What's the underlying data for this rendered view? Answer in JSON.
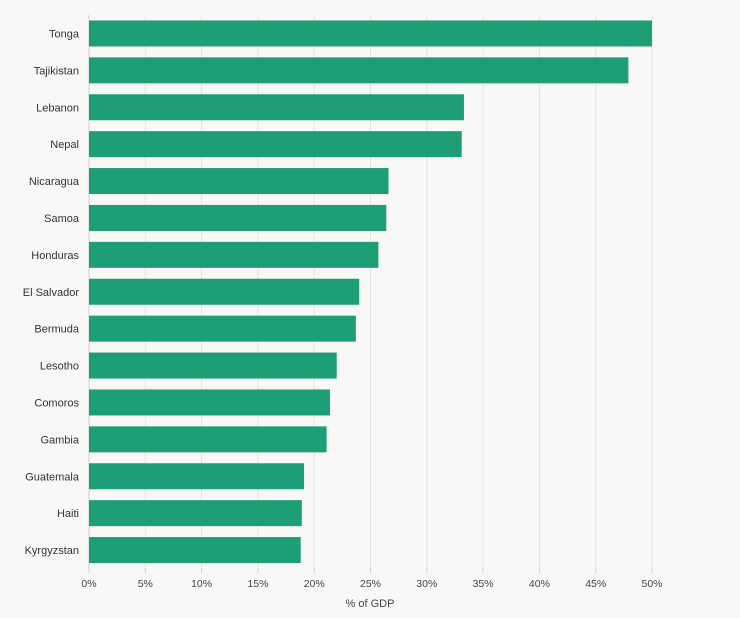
{
  "chart_data": {
    "type": "bar",
    "orientation": "horizontal",
    "title": "",
    "xlabel": "% of GDP",
    "ylabel": "",
    "categories": [
      "Tonga",
      "Tajikistan",
      "Lebanon",
      "Nepal",
      "Nicaragua",
      "Samoa",
      "Honduras",
      "El Salvador",
      "Bermuda",
      "Lesotho",
      "Comoros",
      "Gambia",
      "Guatemala",
      "Haiti",
      "Kyrgyzstan"
    ],
    "values": [
      50.0,
      47.9,
      33.3,
      33.1,
      26.6,
      26.4,
      25.7,
      24.0,
      23.7,
      22.0,
      21.4,
      21.1,
      19.1,
      18.9,
      18.8
    ],
    "xlim": [
      0,
      50
    ],
    "x_ticks": [
      0,
      5,
      10,
      15,
      20,
      25,
      30,
      35,
      40,
      45,
      50
    ],
    "x_tick_labels": [
      "0%",
      "5%",
      "10%",
      "15%",
      "20%",
      "25%",
      "30%",
      "35%",
      "40%",
      "45%",
      "50%"
    ],
    "grid": true,
    "legend": "none",
    "colors": {
      "bar": "#1e9e76",
      "grid": "#e3e3e0",
      "axis": "#cfcfcc",
      "background": "#f8f8f6"
    }
  }
}
